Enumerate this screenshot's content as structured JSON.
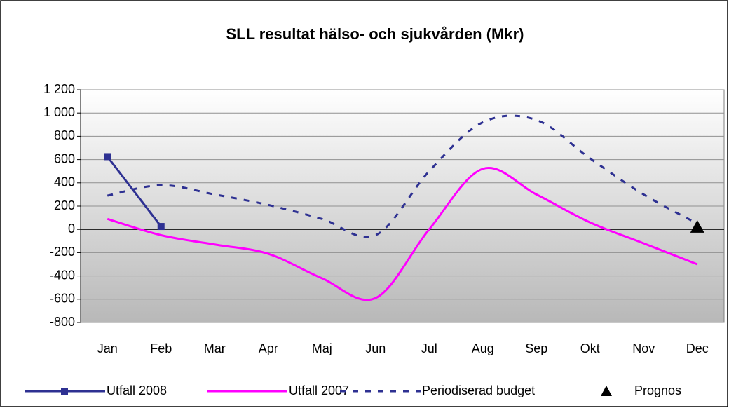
{
  "chart_data": {
    "type": "line",
    "title": "SLL resultat hälso- och sjukvården (Mkr)",
    "categories": [
      "Jan",
      "Feb",
      "Mar",
      "Apr",
      "Maj",
      "Jun",
      "Jul",
      "Aug",
      "Sep",
      "Okt",
      "Nov",
      "Dec"
    ],
    "series": [
      {
        "name": "Utfall 2008",
        "color": "#2e3192",
        "style": "solid",
        "marker": "square",
        "smooth": false,
        "values": [
          625,
          25,
          null,
          null,
          null,
          null,
          null,
          null,
          null,
          null,
          null,
          null
        ]
      },
      {
        "name": "Utfall 2007",
        "color": "#ff00ff",
        "style": "solid",
        "marker": "none",
        "smooth": true,
        "values": [
          90,
          -50,
          -130,
          -210,
          -420,
          -590,
          0,
          520,
          300,
          60,
          -120,
          -300
        ]
      },
      {
        "name": "Periodiserad budget",
        "color": "#2e3192",
        "style": "dashed",
        "marker": "none",
        "smooth": true,
        "values": [
          290,
          380,
          300,
          210,
          90,
          -50,
          500,
          920,
          940,
          610,
          300,
          50
        ]
      },
      {
        "name": "Prognos",
        "color": "#000000",
        "style": "none",
        "marker": "triangle",
        "smooth": false,
        "values": [
          null,
          null,
          null,
          null,
          null,
          null,
          null,
          null,
          null,
          null,
          null,
          20
        ]
      }
    ],
    "ylim": [
      -800,
      1200
    ],
    "yticks": [
      -800,
      -600,
      -400,
      -200,
      0,
      200,
      400,
      600,
      800,
      {
        "value": 1000,
        "label": "1 000"
      },
      {
        "value": 1200,
        "label": "1 200"
      }
    ],
    "grid": true,
    "legend": "bottom"
  }
}
